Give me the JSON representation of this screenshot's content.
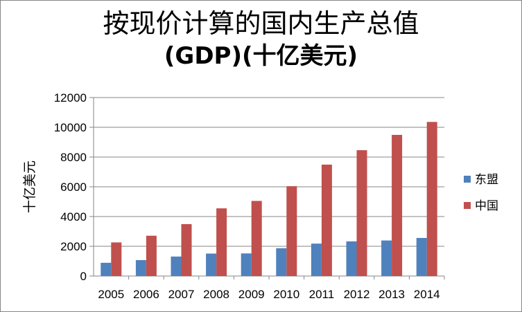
{
  "chart_data": {
    "type": "bar",
    "title_line1": "按现价计算的国内生产总值",
    "title_line2": "(GDP)(十亿美元)",
    "ylabel": "十亿美元",
    "xlabel": "",
    "categories": [
      "2005",
      "2006",
      "2007",
      "2008",
      "2009",
      "2010",
      "2011",
      "2012",
      "2013",
      "2014"
    ],
    "series": [
      {
        "name": "东盟",
        "color": "#4f81bd",
        "values": [
          890,
          1070,
          1310,
          1510,
          1520,
          1870,
          2180,
          2330,
          2390,
          2560
        ]
      },
      {
        "name": "中国",
        "color": "#c0504d",
        "values": [
          2260,
          2710,
          3490,
          4550,
          5050,
          6040,
          7490,
          8460,
          9490,
          10360
        ]
      }
    ],
    "ylim": [
      0,
      12000
    ],
    "yticks": [
      0,
      2000,
      4000,
      6000,
      8000,
      10000,
      12000
    ],
    "grid": true,
    "legend": "right"
  }
}
